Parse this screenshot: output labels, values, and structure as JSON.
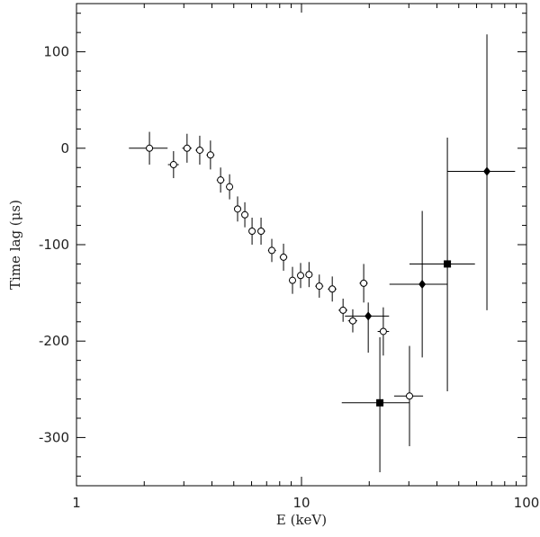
{
  "chart_data": {
    "type": "scatter",
    "xlabel": "E (keV)",
    "ylabel": "Time lag (μs)",
    "xlog": true,
    "xlim": [
      1,
      100
    ],
    "xticks": [
      1,
      10,
      100
    ],
    "xminorticks": [
      2,
      3,
      4,
      5,
      6,
      7,
      8,
      9,
      20,
      30,
      40,
      50,
      60,
      70,
      80,
      90
    ],
    "ylim": [
      -350,
      150
    ],
    "yticks": [
      -300,
      -200,
      -100,
      0,
      100
    ],
    "yminorticks": [
      -340,
      -320,
      -280,
      -260,
      -240,
      -220,
      -180,
      -160,
      -140,
      -120,
      -80,
      -60,
      -40,
      -20,
      20,
      40,
      60,
      80,
      120,
      140
    ],
    "color": "#000000",
    "series": [
      {
        "marker": "open-circle",
        "x": [
          2.11,
          2.7,
          3.1,
          3.53,
          3.94,
          4.37,
          4.79,
          5.2,
          5.6,
          6.03,
          6.61,
          7.38,
          8.32,
          9.12,
          9.91,
          10.8,
          12.0,
          13.7,
          15.3,
          16.9,
          18.9,
          23.1,
          30.2
        ],
        "y": [
          0,
          -17,
          0,
          -2,
          -7,
          -33,
          -40,
          -63,
          -69,
          -86,
          -86,
          -106,
          -113,
          -137,
          -132,
          -131,
          -143,
          -146,
          -168,
          -179,
          -140,
          -190,
          -257
        ],
        "ylo": [
          -17,
          -31,
          -15,
          -17,
          -22,
          -46,
          -53,
          -76,
          -82,
          -100,
          -100,
          -118,
          -127,
          -151,
          -145,
          -144,
          -155,
          -159,
          -180,
          -191,
          -160,
          -215,
          -309
        ],
        "yhi": [
          17,
          -3,
          15,
          13,
          8,
          -20,
          -27,
          -50,
          -56,
          -72,
          -72,
          -94,
          -99,
          -123,
          -119,
          -118,
          -131,
          -133,
          -156,
          -167,
          -120,
          -165,
          -205
        ],
        "xlo": [
          1.71,
          2.55,
          2.95,
          3.38,
          3.78,
          4.2,
          4.62,
          5.02,
          5.42,
          5.83,
          6.38,
          7.1,
          8.0,
          8.8,
          9.6,
          10.4,
          11.5,
          13.1,
          14.6,
          16.1,
          18.1,
          21.8,
          25.8
        ],
        "xhi": [
          2.54,
          2.85,
          3.25,
          3.68,
          4.1,
          4.55,
          4.96,
          5.38,
          5.8,
          6.25,
          6.9,
          7.7,
          8.65,
          9.45,
          10.2,
          11.2,
          12.5,
          14.3,
          16.0,
          17.7,
          19.7,
          24.5,
          34.7
        ]
      },
      {
        "marker": "filled-diamond",
        "x": [
          19.8,
          34.4,
          66.7
        ],
        "y": [
          -174,
          -141,
          -24
        ],
        "ylo": [
          -212,
          -217,
          -168
        ],
        "yhi": [
          -160,
          -65,
          118
        ],
        "xlo": [
          15.6,
          24.6,
          44.5
        ],
        "xhi": [
          24.5,
          44.5,
          89
        ]
      },
      {
        "marker": "filled-square",
        "x": [
          22.3,
          44.5
        ],
        "y": [
          -264,
          -120
        ],
        "ylo": [
          -336,
          -252
        ],
        "yhi": [
          -196,
          11
        ],
        "xlo": [
          15.1,
          30.2
        ],
        "xhi": [
          30.2,
          59
        ]
      }
    ]
  }
}
